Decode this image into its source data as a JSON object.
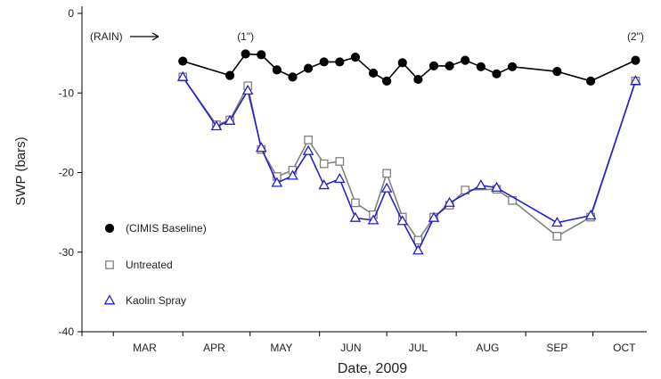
{
  "chart_data": {
    "type": "line",
    "title": "",
    "xlabel": "Date, 2009",
    "ylabel": "SWP (bars)",
    "ylim": [
      -40,
      0
    ],
    "yticks": [
      0,
      -10,
      -20,
      -30,
      -40
    ],
    "xlim": [
      "2009-02-15",
      "2009-10-25"
    ],
    "month_labels": [
      "MAR",
      "APR",
      "MAY",
      "JUN",
      "JUL",
      "AUG",
      "SEP",
      "OCT"
    ],
    "month_label_dates": [
      "2009-03-15",
      "2009-04-15",
      "2009-05-15",
      "2009-06-15",
      "2009-07-15",
      "2009-08-15",
      "2009-09-15",
      "2009-10-15"
    ],
    "month_tick_dates": [
      "2009-03-01",
      "2009-04-01",
      "2009-05-01",
      "2009-06-01",
      "2009-07-01",
      "2009-08-01",
      "2009-09-01",
      "2009-10-01"
    ],
    "grid": false,
    "legend_placement": "lower-left",
    "series": [
      {
        "name": "(CIMIS Baseline)",
        "marker": "filled-circle",
        "color": "#000000",
        "x": [
          "2009-04-01",
          "2009-04-22",
          "2009-04-29",
          "2009-05-06",
          "2009-05-13",
          "2009-05-20",
          "2009-05-27",
          "2009-06-03",
          "2009-06-10",
          "2009-06-17",
          "2009-06-25",
          "2009-07-01",
          "2009-07-08",
          "2009-07-15",
          "2009-07-22",
          "2009-07-29",
          "2009-08-05",
          "2009-08-12",
          "2009-08-19",
          "2009-08-26",
          "2009-09-15",
          "2009-09-30",
          "2009-10-20"
        ],
        "values": [
          -6.0,
          -7.8,
          -5.1,
          -5.2,
          -7.1,
          -8.0,
          -6.9,
          -6.1,
          -6.1,
          -5.5,
          -7.5,
          -8.5,
          -6.2,
          -8.3,
          -6.6,
          -6.6,
          -5.9,
          -6.7,
          -7.6,
          -6.7,
          -7.3,
          -8.5,
          -5.9
        ]
      },
      {
        "name": "Untreated",
        "marker": "open-square",
        "color": "#808080",
        "x": [
          "2009-04-01",
          "2009-04-16",
          "2009-04-22",
          "2009-04-30",
          "2009-05-06",
          "2009-05-13",
          "2009-05-20",
          "2009-05-27",
          "2009-06-03",
          "2009-06-10",
          "2009-06-17",
          "2009-06-25",
          "2009-07-01",
          "2009-07-08",
          "2009-07-15",
          "2009-07-22",
          "2009-07-29",
          "2009-08-05",
          "2009-08-19",
          "2009-08-26",
          "2009-09-15",
          "2009-09-30",
          "2009-10-20"
        ],
        "values": [
          -8.0,
          -14.0,
          -13.4,
          -9.1,
          -17.1,
          -20.5,
          -19.7,
          -15.9,
          -18.9,
          -18.6,
          -23.8,
          -25.3,
          -20.1,
          -25.6,
          -28.5,
          -25.6,
          -24.1,
          -22.2,
          -22.1,
          -23.5,
          -28.0,
          -25.6,
          -8.5
        ]
      },
      {
        "name": "Kaolin Spray",
        "marker": "open-triangle",
        "color": "#2222cc",
        "x": [
          "2009-04-01",
          "2009-04-16",
          "2009-04-22",
          "2009-04-30",
          "2009-05-06",
          "2009-05-13",
          "2009-05-20",
          "2009-05-27",
          "2009-06-03",
          "2009-06-10",
          "2009-06-17",
          "2009-06-25",
          "2009-07-01",
          "2009-07-08",
          "2009-07-15",
          "2009-07-22",
          "2009-07-29",
          "2009-08-12",
          "2009-08-19",
          "2009-09-15",
          "2009-09-30",
          "2009-10-20"
        ],
        "values": [
          -8.0,
          -14.2,
          -13.5,
          -9.7,
          -16.9,
          -21.3,
          -20.4,
          -17.3,
          -21.6,
          -20.8,
          -25.7,
          -26.0,
          -22.0,
          -26.1,
          -29.8,
          -25.7,
          -23.8,
          -21.6,
          -21.9,
          -26.3,
          -25.4,
          -8.5
        ]
      }
    ],
    "annotations": [
      {
        "text": "(RAIN)",
        "has_arrow": true
      },
      {
        "text": "(1\")",
        "x": "2009-04-29"
      },
      {
        "text": "(2\")",
        "x": "2009-10-20"
      }
    ]
  }
}
